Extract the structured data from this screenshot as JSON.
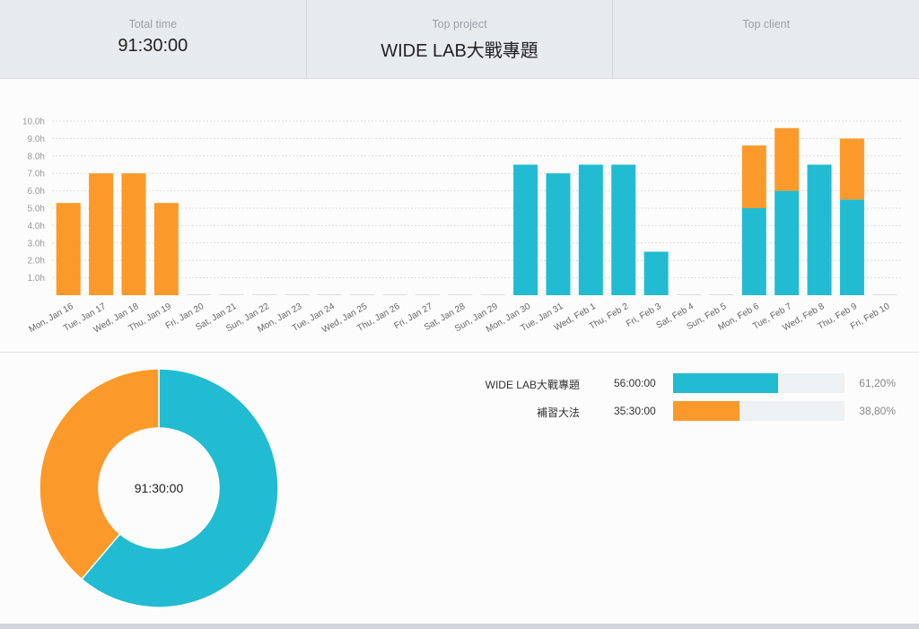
{
  "summary": {
    "total_time_label": "Total time",
    "total_time_value": "91:30:00",
    "top_project_label": "Top project",
    "top_project_value": "WIDE LAB大戰專題",
    "top_client_label": "Top client",
    "top_client_value": ""
  },
  "colors": {
    "teal": "#21bcd1",
    "orange": "#fb9a2a",
    "track": "#edf1f4"
  },
  "chart_data": {
    "type": "bar",
    "stacked": true,
    "y_tick_labels": [
      "1.0h",
      "2.0h",
      "3.0h",
      "4.0h",
      "5.0h",
      "6.0h",
      "7.0h",
      "8.0h",
      "9.0h",
      "10.0h"
    ],
    "ylim": [
      0,
      10
    ],
    "grid": true,
    "categories": [
      "Mon, Jan 16",
      "Tue, Jan 17",
      "Wed, Jan 18",
      "Thu, Jan 19",
      "Fri, Jan 20",
      "Sat, Jan 21",
      "Sun, Jan 22",
      "Mon, Jan 23",
      "Tue, Jan 24",
      "Wed, Jan 25",
      "Thu, Jan 26",
      "Fri, Jan 27",
      "Sat, Jan 28",
      "Sun, Jan 29",
      "Mon, Jan 30",
      "Tue, Jan 31",
      "Wed, Feb 1",
      "Thu, Feb 2",
      "Fri, Feb 3",
      "Sat, Feb 4",
      "Sun, Feb 5",
      "Mon, Feb 6",
      "Tue, Feb 7",
      "Wed, Feb 8",
      "Thu, Feb 9",
      "Fri, Feb 10"
    ],
    "series": [
      {
        "name": "WIDE LAB大戰專題",
        "color": "#21bcd1",
        "values": [
          0,
          0,
          0,
          0,
          0,
          0,
          0,
          0,
          0,
          0,
          0,
          0,
          0,
          0,
          7.5,
          7,
          7.5,
          7.5,
          2.5,
          0,
          0,
          5,
          6,
          7.5,
          5.5,
          0
        ]
      },
      {
        "name": "補習大法",
        "color": "#fb9a2a",
        "values": [
          5.3,
          7,
          7,
          5.3,
          0,
          0,
          0,
          0,
          0,
          0,
          0,
          0,
          0,
          0,
          0,
          0,
          0,
          0,
          0,
          0,
          0,
          3.6,
          3.6,
          0,
          3.5,
          0
        ]
      }
    ]
  },
  "donut": {
    "center_label": "91:30:00",
    "slices": [
      {
        "name": "WIDE LAB大戰專題",
        "fraction": 0.612,
        "color": "#21bcd1"
      },
      {
        "name": "補習大法",
        "fraction": 0.388,
        "color": "#fb9a2a"
      }
    ]
  },
  "projects": [
    {
      "name": "WIDE LAB大戰專題",
      "time": "56:00:00",
      "percent": "61,20%",
      "fraction": 0.612,
      "color": "#21bcd1"
    },
    {
      "name": "補習大法",
      "time": "35:30:00",
      "percent": "38,80%",
      "fraction": 0.388,
      "color": "#fb9a2a"
    }
  ]
}
